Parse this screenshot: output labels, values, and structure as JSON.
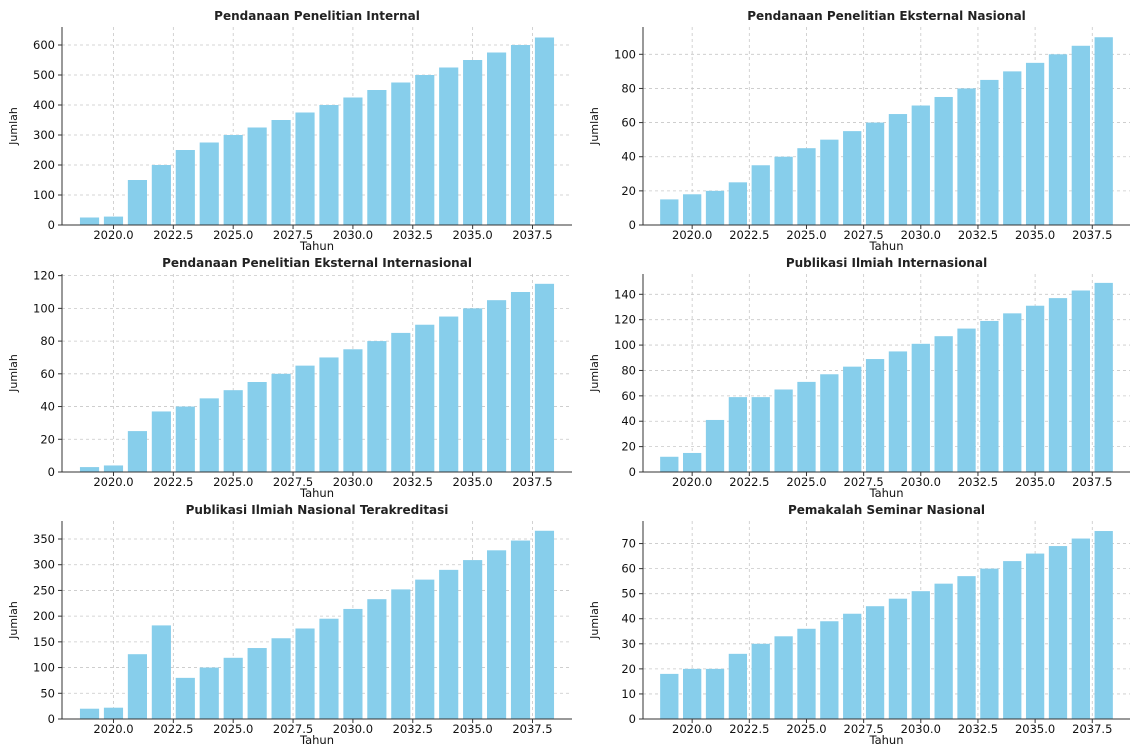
{
  "figure": {
    "colors": {
      "bar": "#87CEEB",
      "grid": "#c8c8c8",
      "axis": "#333333"
    }
  },
  "chart_data": [
    {
      "type": "bar",
      "title": "Pendanaan Penelitian Internal",
      "xlabel": "Tahun",
      "ylabel": "Jumlah",
      "x": [
        2019,
        2020,
        2021,
        2022,
        2023,
        2024,
        2025,
        2026,
        2027,
        2028,
        2029,
        2030,
        2031,
        2032,
        2033,
        2034,
        2035,
        2036,
        2037,
        2038
      ],
      "values": [
        25,
        28,
        150,
        200,
        250,
        275,
        300,
        325,
        350,
        375,
        400,
        425,
        450,
        475,
        500,
        525,
        550,
        575,
        600,
        625
      ],
      "ylim": [
        0,
        660
      ],
      "yticks": [
        0,
        100,
        200,
        300,
        400,
        500,
        600
      ],
      "xticks": [
        "2020.0",
        "2022.5",
        "2025.0",
        "2027.5",
        "2030.0",
        "2032.5",
        "2035.0",
        "2037.5"
      ],
      "grid": true
    },
    {
      "type": "bar",
      "title": "Pendanaan Penelitian Eksternal Nasional",
      "xlabel": "Tahun",
      "ylabel": "Jumlah",
      "x": [
        2019,
        2020,
        2021,
        2022,
        2023,
        2024,
        2025,
        2026,
        2027,
        2028,
        2029,
        2030,
        2031,
        2032,
        2033,
        2034,
        2035,
        2036,
        2037,
        2038
      ],
      "values": [
        15,
        18,
        20,
        25,
        35,
        40,
        45,
        50,
        55,
        60,
        65,
        70,
        75,
        80,
        85,
        90,
        95,
        100,
        105,
        110
      ],
      "ylim": [
        0,
        116
      ],
      "yticks": [
        0,
        20,
        40,
        60,
        80,
        100
      ],
      "xticks": [
        "2020.0",
        "2022.5",
        "2025.0",
        "2027.5",
        "2030.0",
        "2032.5",
        "2035.0",
        "2037.5"
      ],
      "grid": true
    },
    {
      "type": "bar",
      "title": "Pendanaan Penelitian Eksternal Internasional",
      "xlabel": "Tahun",
      "ylabel": "Jumlah",
      "x": [
        2019,
        2020,
        2021,
        2022,
        2023,
        2024,
        2025,
        2026,
        2027,
        2028,
        2029,
        2030,
        2031,
        2032,
        2033,
        2034,
        2035,
        2036,
        2037,
        2038
      ],
      "values": [
        3,
        4,
        25,
        37,
        40,
        45,
        50,
        55,
        60,
        65,
        70,
        75,
        80,
        85,
        90,
        95,
        100,
        105,
        110,
        115
      ],
      "ylim": [
        0,
        121
      ],
      "yticks": [
        0,
        20,
        40,
        60,
        80,
        100,
        120
      ],
      "xticks": [
        "2020.0",
        "2022.5",
        "2025.0",
        "2027.5",
        "2030.0",
        "2032.5",
        "2035.0",
        "2037.5"
      ],
      "grid": true
    },
    {
      "type": "bar",
      "title": "Publikasi Ilmiah Internasional",
      "xlabel": "Tahun",
      "ylabel": "Jumlah",
      "x": [
        2019,
        2020,
        2021,
        2022,
        2023,
        2024,
        2025,
        2026,
        2027,
        2028,
        2029,
        2030,
        2031,
        2032,
        2033,
        2034,
        2035,
        2036,
        2037,
        2038
      ],
      "values": [
        12,
        15,
        41,
        59,
        59,
        65,
        71,
        77,
        83,
        89,
        95,
        101,
        107,
        113,
        119,
        125,
        131,
        137,
        143,
        149
      ],
      "ylim": [
        0,
        156
      ],
      "yticks": [
        0,
        20,
        40,
        60,
        80,
        100,
        120,
        140
      ],
      "xticks": [
        "2020.0",
        "2022.5",
        "2025.0",
        "2027.5",
        "2030.0",
        "2032.5",
        "2035.0",
        "2037.5"
      ],
      "grid": true
    },
    {
      "type": "bar",
      "title": "Publikasi Ilmiah Nasional Terakreditasi",
      "xlabel": "Tahun",
      "ylabel": "Jumlah",
      "x": [
        2019,
        2020,
        2021,
        2022,
        2023,
        2024,
        2025,
        2026,
        2027,
        2028,
        2029,
        2030,
        2031,
        2032,
        2033,
        2034,
        2035,
        2036,
        2037,
        2038
      ],
      "values": [
        20,
        22,
        126,
        182,
        80,
        100,
        119,
        138,
        157,
        176,
        195,
        214,
        233,
        252,
        271,
        290,
        309,
        328,
        347,
        366
      ],
      "ylim": [
        0,
        385
      ],
      "yticks": [
        0,
        50,
        100,
        150,
        200,
        250,
        300,
        350
      ],
      "xticks": [
        "2020.0",
        "2022.5",
        "2025.0",
        "2027.5",
        "2030.0",
        "2032.5",
        "2035.0",
        "2037.5"
      ],
      "grid": true
    },
    {
      "type": "bar",
      "title": "Pemakalah Seminar Nasional",
      "xlabel": "Tahun",
      "ylabel": "Jumlah",
      "x": [
        2019,
        2020,
        2021,
        2022,
        2023,
        2024,
        2025,
        2026,
        2027,
        2028,
        2029,
        2030,
        2031,
        2032,
        2033,
        2034,
        2035,
        2036,
        2037,
        2038
      ],
      "values": [
        18,
        20,
        20,
        26,
        30,
        33,
        36,
        39,
        42,
        45,
        48,
        51,
        54,
        57,
        60,
        63,
        66,
        69,
        72,
        75
      ],
      "ylim": [
        0,
        79
      ],
      "yticks": [
        0,
        10,
        20,
        30,
        40,
        50,
        60,
        70
      ],
      "xticks": [
        "2020.0",
        "2022.5",
        "2025.0",
        "2027.5",
        "2030.0",
        "2032.5",
        "2035.0",
        "2037.5"
      ],
      "grid": true
    }
  ]
}
